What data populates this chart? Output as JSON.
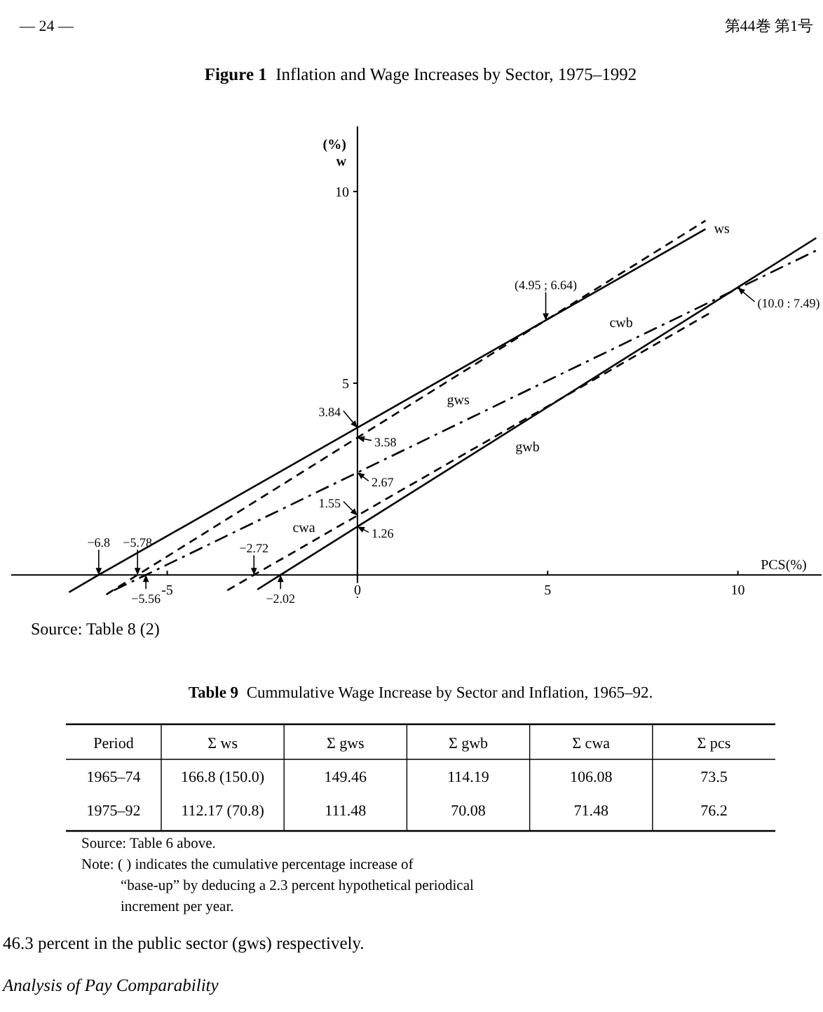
{
  "chart_data": [
    {
      "type": "line",
      "title": "Figure 1  Inflation and Wage Increases by Sector, 1975–1992",
      "xlabel": "PCS(%)",
      "ylabel": "(%) w",
      "xlim": [
        -9.1,
        12.2
      ],
      "ylim": [
        -0.6,
        11.7
      ],
      "xticks": [
        -5,
        0,
        5,
        10
      ],
      "yticks": [
        5,
        10
      ],
      "series": [
        {
          "name": "ws",
          "color": "#000000",
          "line_style": "solid",
          "x": [
            -7.58,
            -6.8,
            0,
            4.95,
            9.15
          ],
          "values": [
            -0.45,
            0,
            3.84,
            6.64,
            9.02
          ]
        },
        {
          "name": "gws",
          "color": "#000000",
          "line_style": "dashed",
          "x": [
            -6.6,
            -5.78,
            0,
            9.15
          ],
          "values": [
            -0.51,
            0,
            3.58,
            9.24
          ]
        },
        {
          "name": "cwb",
          "color": "#000000",
          "line_style": "dashdot",
          "x": [
            -6.4,
            -5.56,
            0,
            10,
            12.1
          ],
          "values": [
            -0.4,
            0,
            2.67,
            7.47,
            8.48
          ]
        },
        {
          "name": "cwa",
          "color": "#000000",
          "line_style": "dashed",
          "x": [
            -3.42,
            -2.72,
            0,
            9.3
          ],
          "values": [
            -0.4,
            0,
            1.55,
            6.85
          ]
        },
        {
          "name": "gwb",
          "color": "#000000",
          "line_style": "solid",
          "x": [
            -2.63,
            -2.02,
            0,
            10,
            12.06
          ],
          "values": [
            -0.38,
            0,
            1.26,
            7.5,
            8.79
          ]
        }
      ],
      "annotations": [
        {
          "text": "(4.95 ; 6.64)",
          "x": 4.95,
          "y": 6.64
        },
        {
          "text": "(10.0 : 7.49)",
          "x": 10,
          "y": 7.49
        },
        {
          "text": "3.84",
          "x": 0,
          "y": 3.84
        },
        {
          "text": "3.58",
          "x": 0,
          "y": 3.58
        },
        {
          "text": "2.67",
          "x": 0,
          "y": 2.67
        },
        {
          "text": "1.55",
          "x": 0,
          "y": 1.55
        },
        {
          "text": "1.26",
          "x": 0,
          "y": 1.26
        },
        {
          "text": "−6.8",
          "x": -6.8,
          "y": 0
        },
        {
          "text": "−5.78",
          "x": -5.78,
          "y": 0
        },
        {
          "text": "−5.56",
          "x": -5.56,
          "y": 0
        },
        {
          "text": "−2.72",
          "x": -2.72,
          "y": 0
        },
        {
          "text": "−2.02",
          "x": -2.02,
          "y": 0
        },
        "Source: Table 8 (2)",
        "— 24 —",
        "第44巻 第1号"
      ]
    },
    {
      "type": "other",
      "title": "Table 9  Cummulative Wage Increase by Sector and Inflation, 1965–92.",
      "categories": [
        "Period",
        "Σ ws",
        "Σ gws",
        "Σ gwb",
        "Σ cwa",
        "Σ pcs"
      ],
      "y_categories": [
        "1965–74",
        "1975–92"
      ],
      "cell_labels": [
        [
          "166.8 (150.0)",
          "149.46",
          "114.19",
          "106.08",
          "73.5"
        ],
        [
          "112.17 (70.8)",
          "111.48",
          "70.08",
          "71.48",
          "76.2"
        ]
      ],
      "annotations": [
        "Source: Table 6 above.",
        "Note: (   ) indicates the cumulative percentage increase of “base-up” by deducing a 2.3 percent hypothetical periodical increment per year.",
        "46.3 percent in the public sector (gws) respectively.",
        "Analysis of Pay Comparability"
      ]
    }
  ]
}
